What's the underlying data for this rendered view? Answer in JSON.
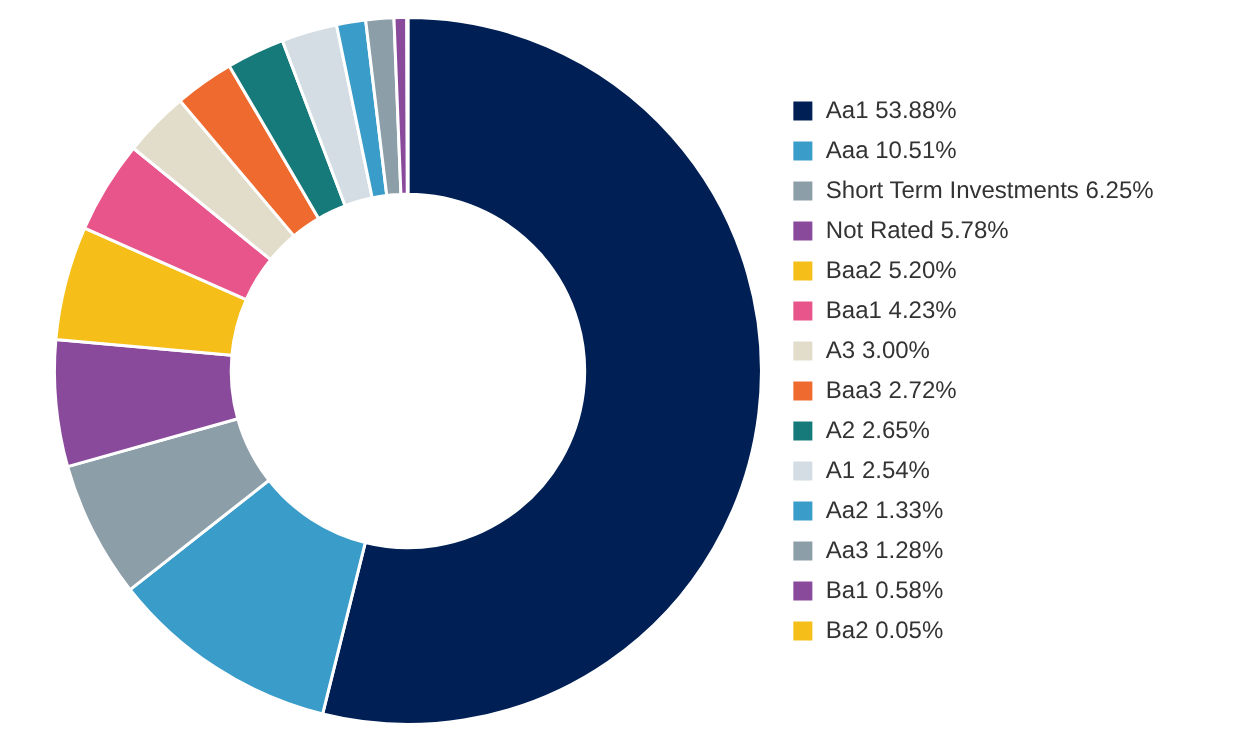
{
  "chart_data": {
    "type": "donut",
    "categories": [
      "Aa1 53.88%",
      "Aaa 10.51%",
      "Short Term Investments 6.25%",
      "Not Rated 5.78%",
      "Baa2 5.20%",
      "Baa1 4.23%",
      "A3 3.00%",
      "Baa3 2.72%",
      "A2 2.65%",
      "A1 2.54%",
      "Aa2 1.33%",
      "Aa3 1.28%",
      "Ba1 0.58%",
      "Ba2 0.05%"
    ],
    "values": [
      53.88,
      10.51,
      6.25,
      5.78,
      5.2,
      4.23,
      3.0,
      2.72,
      2.65,
      2.54,
      1.33,
      1.28,
      0.58,
      0.05
    ],
    "colors": [
      "#002055",
      "#3a9cc8",
      "#8c9ea8",
      "#8a4a9c",
      "#f5be19",
      "#e8558a",
      "#e2dccb",
      "#ee6a2e",
      "#167a7a",
      "#d3dde3",
      "#3a9cc8",
      "#8c9ea8",
      "#8a4a9c",
      "#f5be19"
    ],
    "legend": "right"
  }
}
